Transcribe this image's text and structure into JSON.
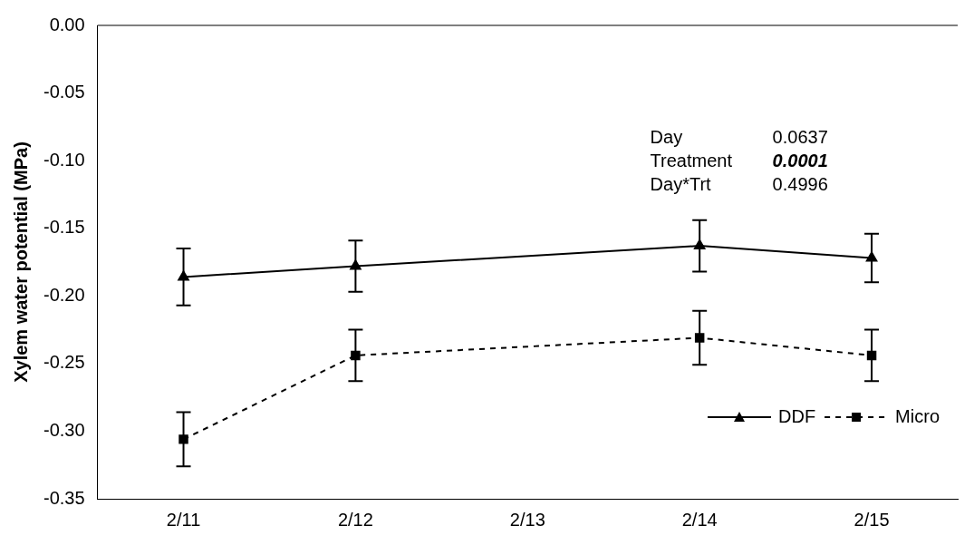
{
  "chart_data": {
    "type": "line",
    "ylabel": "Xylem water potential (MPa)",
    "categories": [
      "2/11",
      "2/12",
      "2/13",
      "2/14",
      "2/15"
    ],
    "series": [
      {
        "name": "DDF",
        "color": "#000000",
        "marker": "triangle",
        "line_style": "solid",
        "values": [
          -0.186,
          -0.178,
          null,
          -0.163,
          -0.172
        ],
        "errors": [
          0.021,
          0.019,
          null,
          0.019,
          0.018
        ]
      },
      {
        "name": "Micro",
        "color": "#000000",
        "marker": "square",
        "line_style": "dashed",
        "values": [
          -0.306,
          -0.244,
          null,
          -0.231,
          -0.244
        ],
        "errors": [
          0.02,
          0.019,
          null,
          0.02,
          0.019
        ]
      }
    ],
    "ylim": [
      -0.35,
      0
    ],
    "yticks": [
      {
        "value": 0,
        "label": "0.00"
      },
      -0.05,
      {
        "value": -0.1,
        "label": "-0.10"
      },
      -0.15,
      {
        "value": -0.2,
        "label": "-0.20"
      },
      -0.25,
      {
        "value": -0.3,
        "label": "-0.30"
      },
      -0.35
    ],
    "grid": false,
    "legend": "bottom right",
    "annotations": [
      "Day",
      "0.0637",
      "Treatment",
      "0.0001",
      "Day*Trt",
      "0.4996"
    ]
  }
}
